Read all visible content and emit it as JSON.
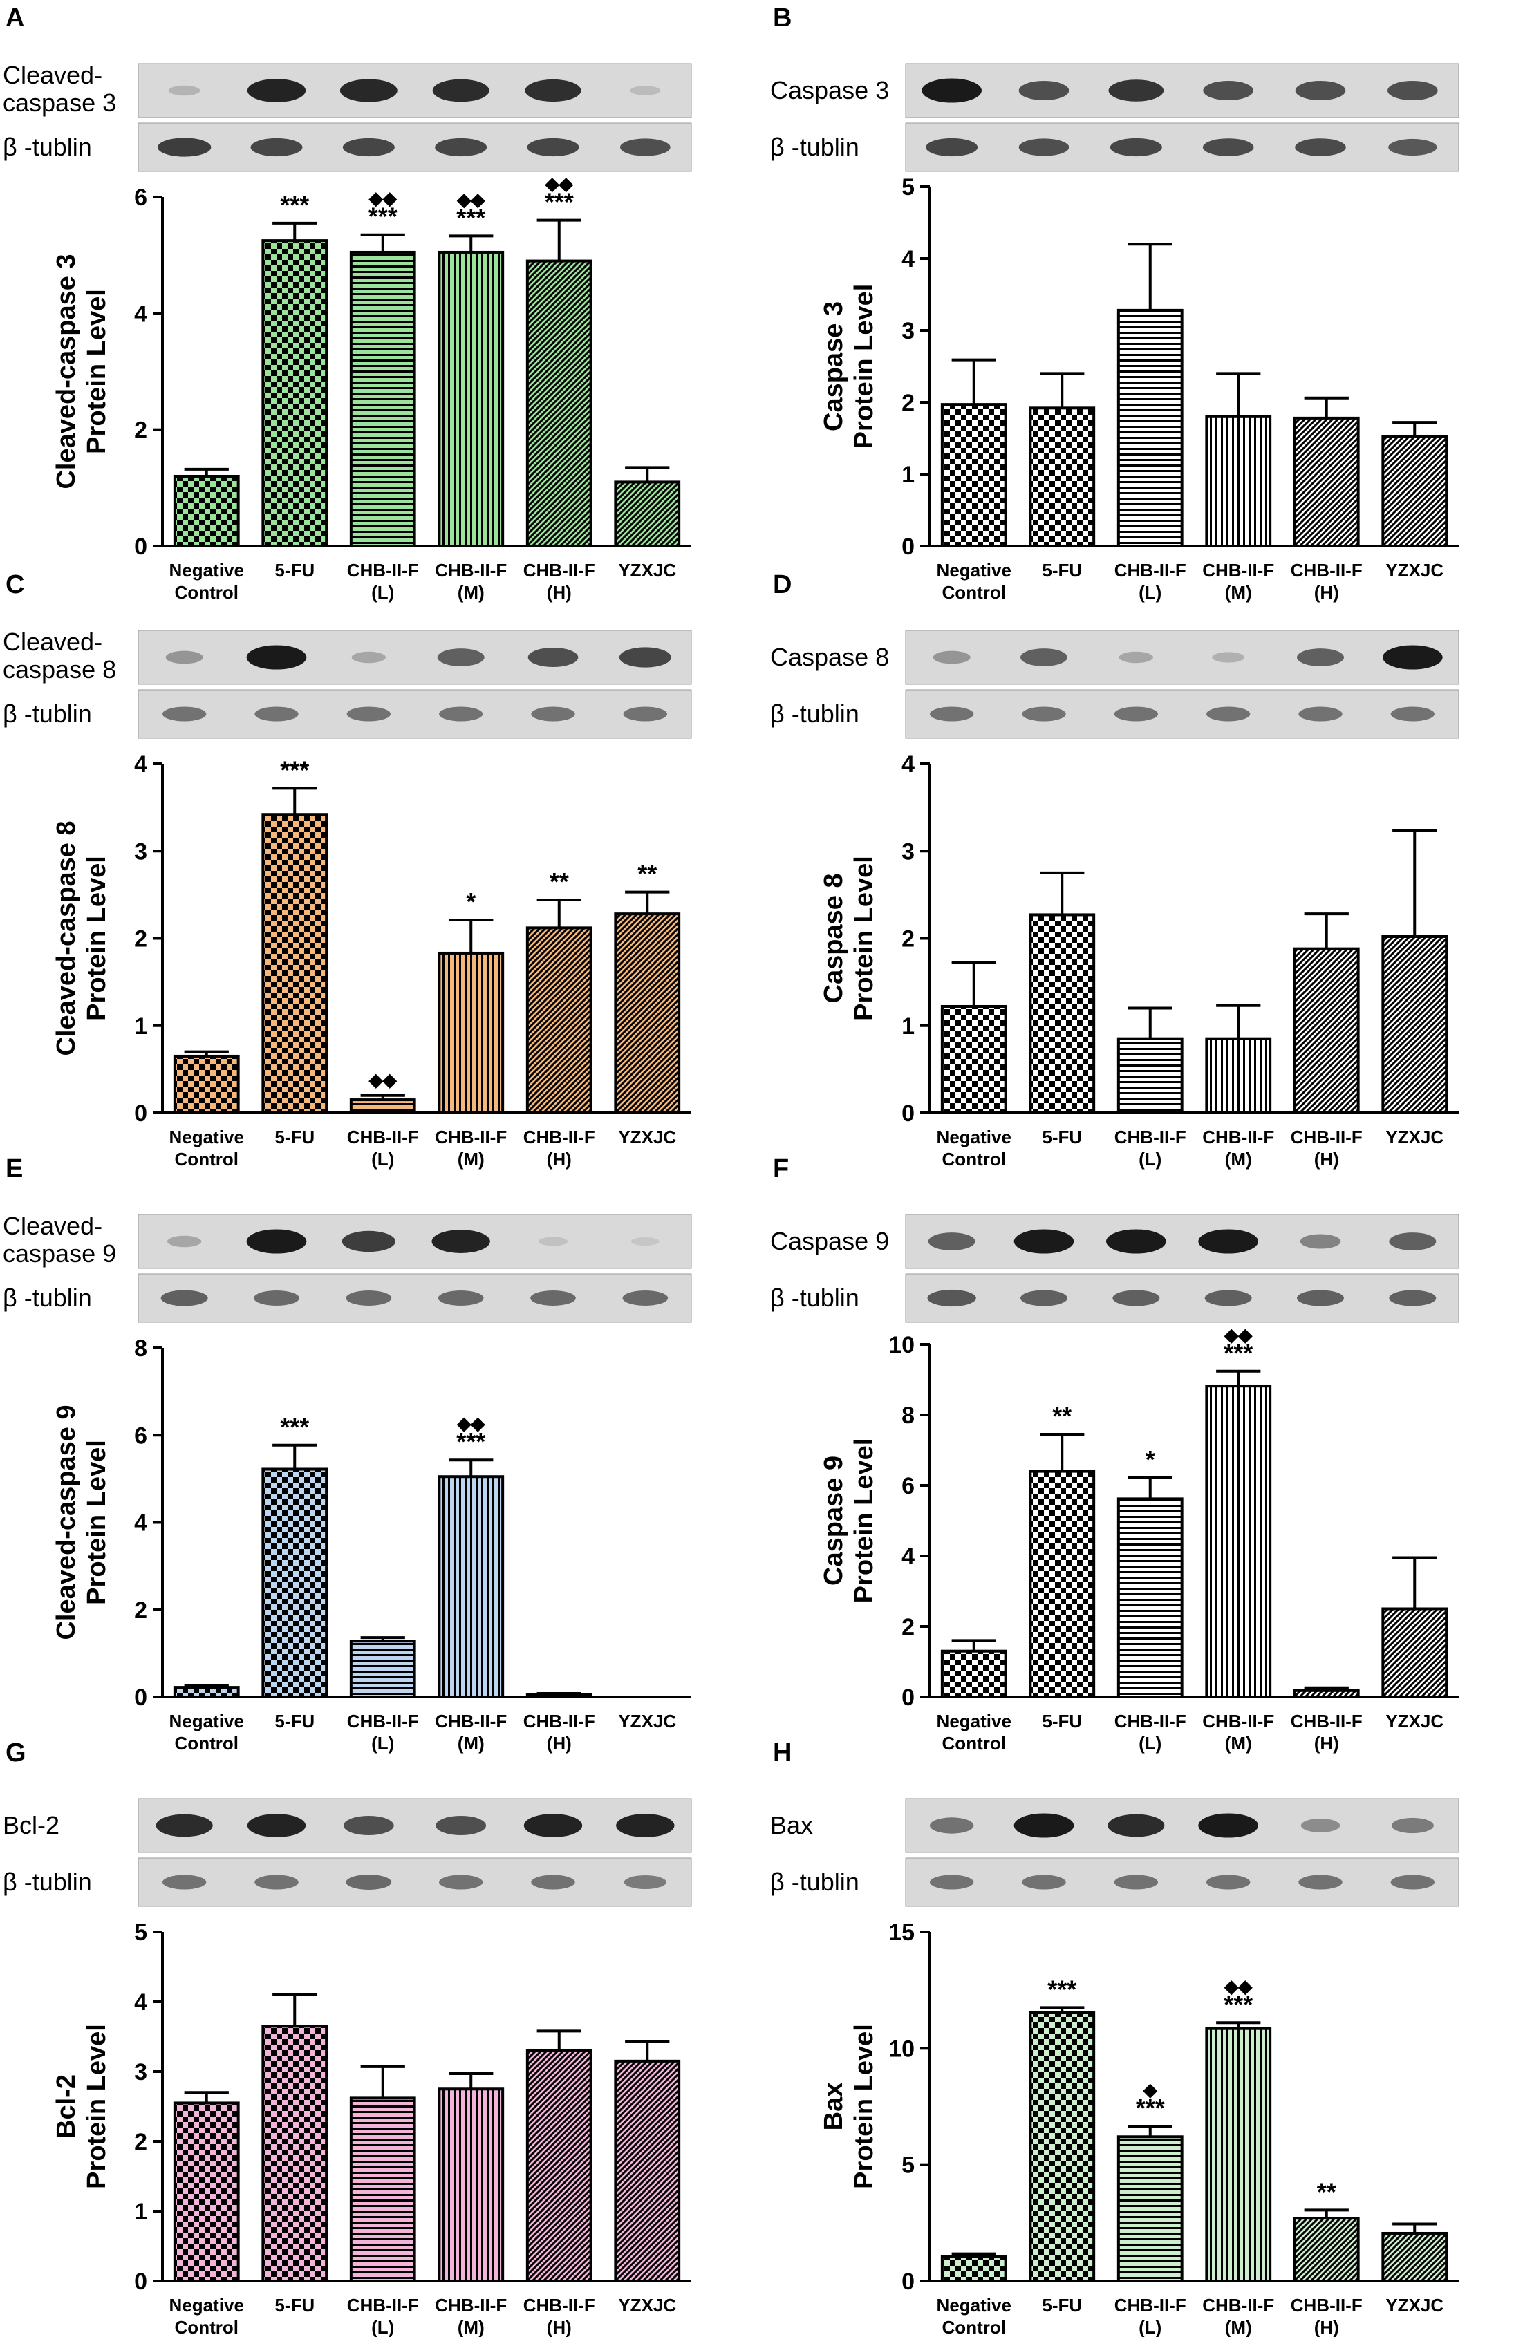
{
  "chart_data": [
    {
      "panel": "A",
      "type": "bar",
      "blot_labels": [
        "Cleaved-\ncaspase 3",
        "β -tublin"
      ],
      "ylabel": "Cleaved-caspase 3\nProtein Level",
      "categories": [
        "Negative\nControl",
        "5-FU",
        "CHB-II-F\n(L)",
        "CHB-II-F\n(M)",
        "CHB-II-F\n(H)",
        "YZXJC"
      ],
      "values": [
        1.2,
        5.25,
        5.05,
        5.05,
        4.9,
        1.1
      ],
      "errors": [
        0.12,
        0.3,
        0.3,
        0.28,
        0.7,
        0.25
      ],
      "annotations": [
        "",
        "***",
        "◆◆\n***",
        "◆◆\n***",
        "◆◆\n***",
        ""
      ],
      "ylim": [
        0,
        6
      ],
      "yticks": [
        0,
        2,
        4,
        6
      ],
      "color": "#9be39b",
      "bands": [
        [
          0.12,
          0.95,
          0.92,
          0.9,
          0.88,
          0.08
        ],
        [
          0.8,
          0.75,
          0.75,
          0.75,
          0.75,
          0.7
        ]
      ]
    },
    {
      "panel": "B",
      "type": "bar",
      "blot_labels": [
        "Caspase 3",
        "β -tublin"
      ],
      "ylabel": "Caspase 3\nProtein Level",
      "categories": [
        "Negative\nControl",
        "5-FU",
        "CHB-II-F\n(L)",
        "CHB-II-F\n(M)",
        "CHB-II-F\n(H)",
        "YZXJC"
      ],
      "values": [
        1.97,
        1.92,
        3.28,
        1.8,
        1.78,
        1.52
      ],
      "errors": [
        0.62,
        0.48,
        0.92,
        0.6,
        0.28,
        0.2
      ],
      "annotations": [
        "",
        "",
        "",
        "",
        "",
        ""
      ],
      "ylim": [
        0,
        5
      ],
      "yticks": [
        0,
        1,
        2,
        3,
        4,
        5
      ],
      "color": "#ffffff",
      "bands": [
        [
          1.0,
          0.7,
          0.85,
          0.7,
          0.7,
          0.7
        ],
        [
          0.75,
          0.7,
          0.75,
          0.72,
          0.72,
          0.65
        ]
      ]
    },
    {
      "panel": "C",
      "type": "bar",
      "blot_labels": [
        "Cleaved-\ncaspase 8",
        "β -tublin"
      ],
      "ylabel": "Cleaved-caspase 8\nProtein Level",
      "categories": [
        "Negative\nControl",
        "5-FU",
        "CHB-II-F\n(L)",
        "CHB-II-F\n(M)",
        "CHB-II-F\n(H)",
        "YZXJC"
      ],
      "values": [
        0.65,
        3.42,
        0.15,
        1.83,
        2.12,
        2.28
      ],
      "errors": [
        0.05,
        0.3,
        0.05,
        0.38,
        0.32,
        0.25
      ],
      "annotations": [
        "",
        "***",
        "◆◆",
        "*",
        "**",
        "**"
      ],
      "ylim": [
        0,
        4
      ],
      "yticks": [
        0,
        1,
        2,
        3,
        4
      ],
      "color": "#f5b77a",
      "bands": [
        [
          0.3,
          1.0,
          0.2,
          0.6,
          0.7,
          0.75
        ],
        [
          0.5,
          0.5,
          0.5,
          0.5,
          0.5,
          0.5
        ]
      ]
    },
    {
      "panel": "D",
      "type": "bar",
      "blot_labels": [
        "Caspase 8",
        "β -tublin"
      ],
      "ylabel": "Caspase 8\nProtein Level",
      "categories": [
        "Negative\nControl",
        "5-FU",
        "CHB-II-F\n(L)",
        "CHB-II-F\n(M)",
        "CHB-II-F\n(H)",
        "YZXJC"
      ],
      "values": [
        1.22,
        2.27,
        0.85,
        0.85,
        1.88,
        2.02
      ],
      "errors": [
        0.5,
        0.48,
        0.35,
        0.38,
        0.4,
        1.22
      ],
      "annotations": [
        "",
        "",
        "",
        "",
        "",
        ""
      ],
      "ylim": [
        0,
        4
      ],
      "yticks": [
        0,
        1,
        2,
        3,
        4
      ],
      "color": "#ffffff",
      "bands": [
        [
          0.3,
          0.6,
          0.2,
          0.15,
          0.6,
          1.0
        ],
        [
          0.5,
          0.5,
          0.5,
          0.5,
          0.5,
          0.5
        ]
      ]
    },
    {
      "panel": "E",
      "type": "bar",
      "blot_labels": [
        "Cleaved-\ncaspase 9",
        "β -tublin"
      ],
      "ylabel": "Cleaved-caspase 9\nProtein Level",
      "categories": [
        "Negative\nControl",
        "5-FU",
        "CHB-II-F\n(L)",
        "CHB-II-F\n(M)",
        "CHB-II-F\n(H)",
        "YZXJC"
      ],
      "values": [
        0.22,
        5.22,
        1.28,
        5.05,
        0.05,
        0.0
      ],
      "errors": [
        0.05,
        0.55,
        0.08,
        0.38,
        0.03,
        0.0
      ],
      "annotations": [
        "",
        "***",
        "",
        "◆◆\n***",
        "",
        ""
      ],
      "ylim": [
        0,
        8
      ],
      "yticks": [
        0,
        2,
        4,
        6,
        8
      ],
      "color": "#bcd6f2",
      "bands": [
        [
          0.2,
          1.0,
          0.8,
          0.95,
          0.05,
          0.02
        ],
        [
          0.6,
          0.55,
          0.55,
          0.55,
          0.55,
          0.55
        ]
      ]
    },
    {
      "panel": "F",
      "type": "bar",
      "blot_labels": [
        "Caspase 9",
        "β -tublin"
      ],
      "ylabel": "Caspase 9\nProtein Level",
      "categories": [
        "Negative\nControl",
        "5-FU",
        "CHB-II-F\n(L)",
        "CHB-II-F\n(M)",
        "CHB-II-F\n(H)",
        "YZXJC"
      ],
      "values": [
        1.3,
        6.4,
        5.62,
        8.82,
        0.18,
        2.5
      ],
      "errors": [
        0.3,
        1.05,
        0.6,
        0.42,
        0.08,
        1.45
      ],
      "annotations": [
        "",
        "**",
        "*",
        "◆◆\n***",
        "",
        ""
      ],
      "ylim": [
        0,
        10
      ],
      "yticks": [
        0,
        2,
        4,
        6,
        8,
        10
      ],
      "color": "#ffffff",
      "bands": [
        [
          0.6,
          1.0,
          1.0,
          1.0,
          0.4,
          0.6
        ],
        [
          0.65,
          0.6,
          0.6,
          0.6,
          0.6,
          0.6
        ]
      ]
    },
    {
      "panel": "G",
      "type": "bar",
      "blot_labels": [
        "Bcl-2",
        "β -tublin"
      ],
      "ylabel": "Bcl-2\nProtein Level",
      "categories": [
        "Negative\nControl",
        "5-FU",
        "CHB-II-F\n(L)",
        "CHB-II-F\n(M)",
        "CHB-II-F\n(H)",
        "YZXJC"
      ],
      "values": [
        2.55,
        3.65,
        2.62,
        2.75,
        3.3,
        3.15
      ],
      "errors": [
        0.15,
        0.45,
        0.45,
        0.22,
        0.28,
        0.28
      ],
      "annotations": [
        "",
        "",
        "",
        "",
        "",
        ""
      ],
      "ylim": [
        0,
        5
      ],
      "yticks": [
        0,
        1,
        2,
        3,
        4,
        5
      ],
      "color": "#f3b4d9",
      "bands": [
        [
          0.9,
          0.95,
          0.7,
          0.7,
          0.95,
          0.95
        ],
        [
          0.5,
          0.5,
          0.55,
          0.5,
          0.5,
          0.45
        ]
      ]
    },
    {
      "panel": "H",
      "type": "bar",
      "blot_labels": [
        "Bax",
        "β -tublin"
      ],
      "ylabel": "Bax\nProtein Level",
      "categories": [
        "Negative\nControl",
        "5-FU",
        "CHB-II-F\n(L)",
        "CHB-II-F\n(M)",
        "CHB-II-F\n(H)",
        "YZXJC"
      ],
      "values": [
        1.05,
        11.55,
        6.2,
        10.85,
        2.7,
        2.05
      ],
      "errors": [
        0.12,
        0.2,
        0.45,
        0.25,
        0.35,
        0.4
      ],
      "annotations": [
        "",
        "***",
        "◆\n***",
        "◆◆\n***",
        "**",
        ""
      ],
      "ylim": [
        0,
        15
      ],
      "yticks": [
        0,
        5,
        10,
        15
      ],
      "color": "#cdeecd",
      "bands": [
        [
          0.5,
          1.0,
          0.9,
          1.0,
          0.35,
          0.45
        ],
        [
          0.5,
          0.5,
          0.5,
          0.5,
          0.5,
          0.5
        ]
      ]
    }
  ],
  "patterns": [
    "checker",
    "checker",
    "horizontal",
    "vertical",
    "diagonal",
    "diagonal"
  ]
}
